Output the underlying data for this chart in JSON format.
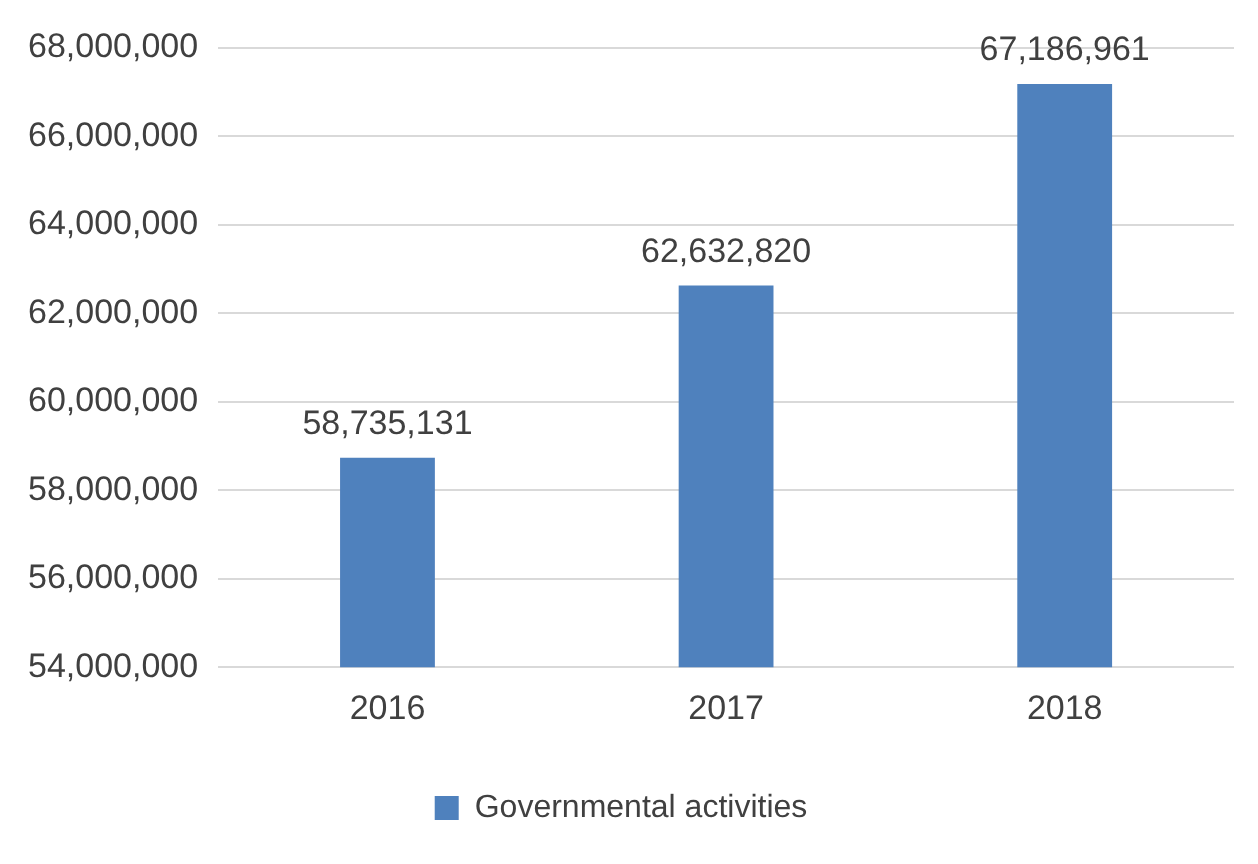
{
  "chart_data": {
    "type": "bar",
    "categories": [
      "2016",
      "2017",
      "2018"
    ],
    "series": [
      {
        "name": "Governmental activities",
        "color": "#4f81bd",
        "values": [
          58735131,
          62632820,
          67186961
        ],
        "value_labels": [
          "58,735,131",
          "62,632,820",
          "67,186,961"
        ]
      }
    ],
    "ylim": [
      54000000,
      68000000
    ],
    "yticks": [
      {
        "value": 54000000,
        "label": "54,000,000"
      },
      {
        "value": 56000000,
        "label": "56,000,000"
      },
      {
        "value": 58000000,
        "label": "58,000,000"
      },
      {
        "value": 60000000,
        "label": "60,000,000"
      },
      {
        "value": 62000000,
        "label": "62,000,000"
      },
      {
        "value": 64000000,
        "label": "64,000,000"
      },
      {
        "value": 66000000,
        "label": "66,000,000"
      },
      {
        "value": 68000000,
        "label": "68,000,000"
      }
    ],
    "grid": "y",
    "legend": "bottom"
  }
}
